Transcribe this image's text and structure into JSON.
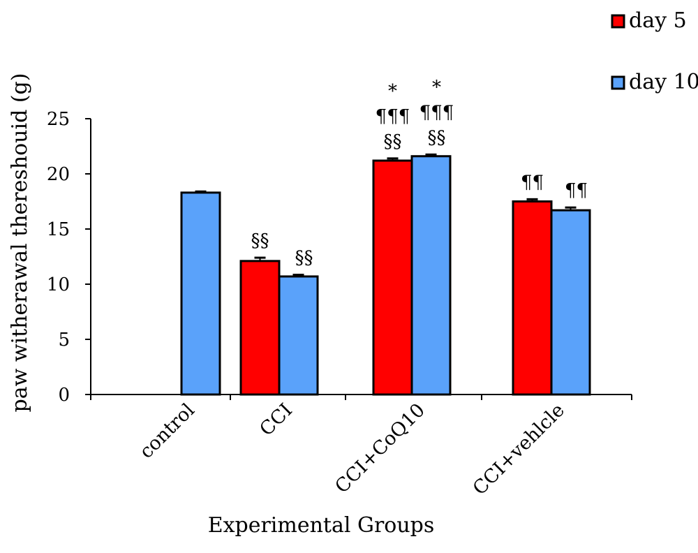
{
  "chart_data": {
    "type": "bar",
    "title": "",
    "xlabel": "Experimental Groups",
    "ylabel": "paw witherawal thereshouid (g)",
    "ylim": [
      0,
      25
    ],
    "yticks": [
      0,
      5,
      10,
      15,
      20,
      25
    ],
    "grid": false,
    "legend_position": "top-right",
    "categories": [
      "control",
      "CCI",
      "CCI+CoQ10",
      "CCI+vehlcle"
    ],
    "series": [
      {
        "name": "day 5",
        "color": "#ff0000",
        "values": [
          null,
          12.1,
          21.2,
          17.5
        ],
        "errors": [
          null,
          0.3,
          0.2,
          0.2
        ],
        "annotations": [
          [],
          [
            "§§"
          ],
          [
            "*",
            "¶¶¶",
            "§§"
          ],
          [
            "¶¶"
          ]
        ]
      },
      {
        "name": "day 10",
        "color": "#5aa2fa",
        "values": [
          18.3,
          10.7,
          21.6,
          16.7
        ],
        "errors": [
          0.1,
          0.15,
          0.15,
          0.25
        ],
        "annotations": [
          [],
          [
            "§§"
          ],
          [
            "*",
            "¶¶¶",
            "§§"
          ],
          [
            "¶¶"
          ]
        ]
      }
    ]
  }
}
